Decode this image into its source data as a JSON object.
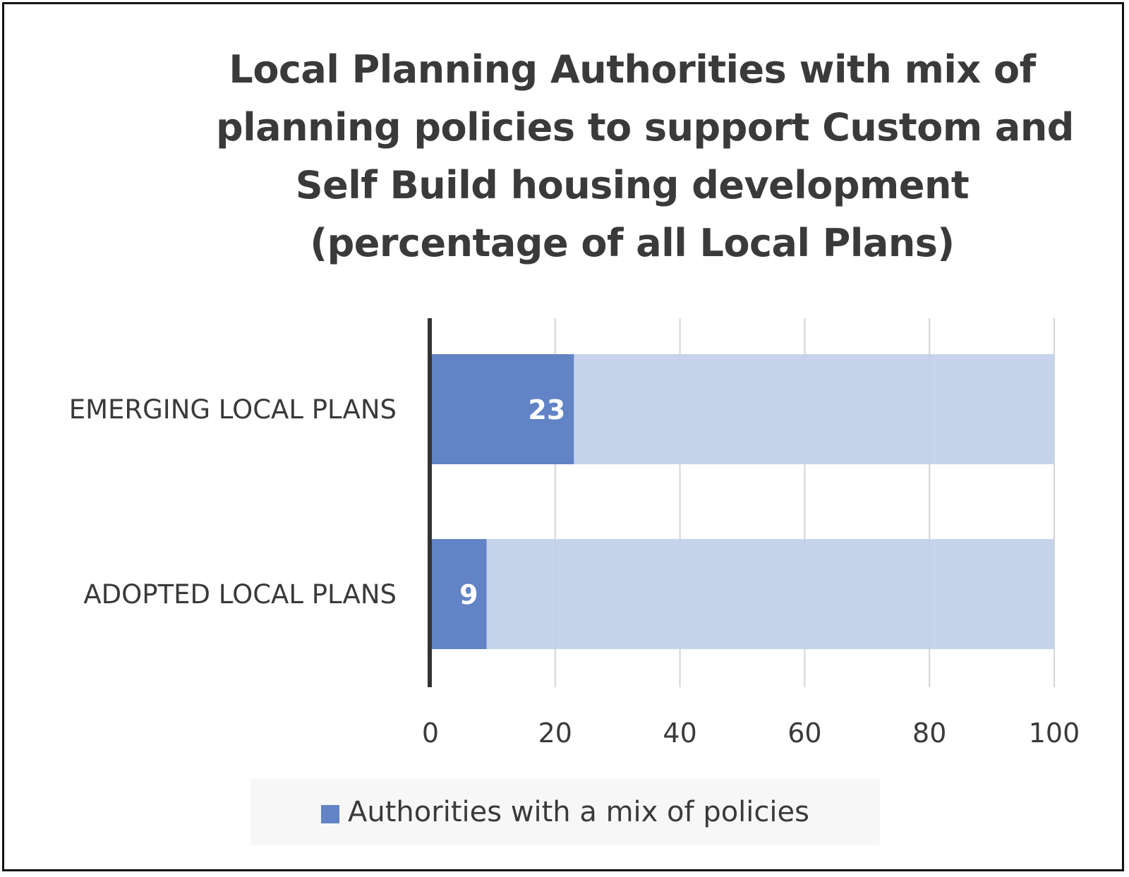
{
  "chart_data": {
    "type": "bar",
    "orientation": "horizontal",
    "title_lines": [
      "Local Planning Authorities with mix of",
      "planning policies to support Custom and",
      "Self Build housing development",
      "(percentage of all Local Plans)"
    ],
    "categories": [
      "EMERGING LOCAL PLANS",
      "ADOPTED LOCAL PLANS"
    ],
    "series": [
      {
        "name": "Authorities with a mix of policies",
        "values": [
          23,
          9
        ],
        "color": "#6283c5",
        "data_labels": [
          "23",
          "9"
        ]
      }
    ],
    "background_total": 100,
    "background_color": "#c1cfe9",
    "xlim": [
      0,
      100
    ],
    "x_ticks": [
      0,
      20,
      40,
      60,
      80,
      100
    ],
    "x_tick_labels": [
      "0",
      "20",
      "40",
      "60",
      "80",
      "100"
    ],
    "grid": "vertical",
    "legend_position": "bottom",
    "xlabel": "",
    "ylabel": ""
  }
}
